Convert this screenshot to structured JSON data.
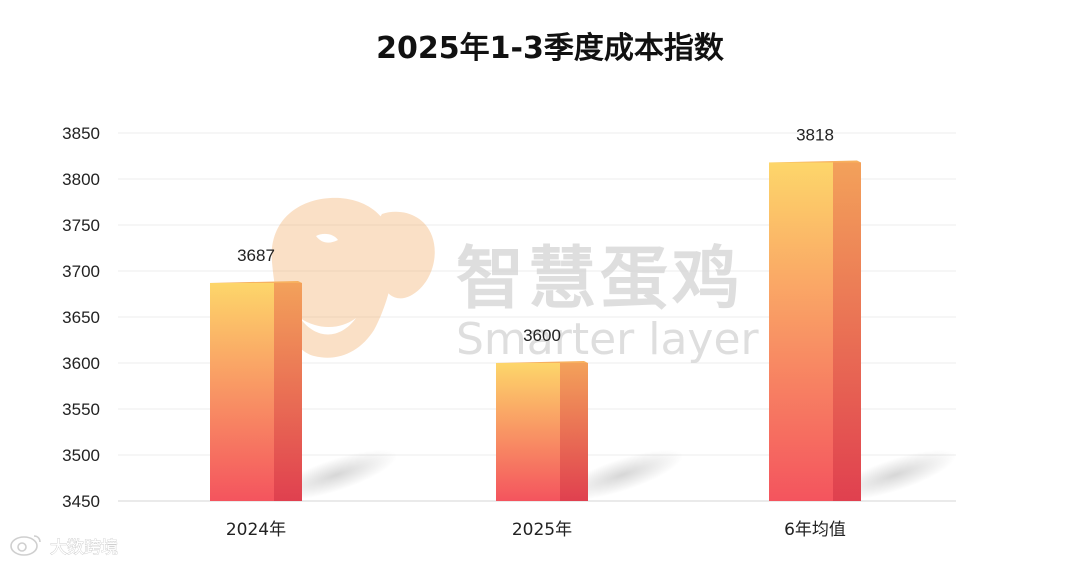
{
  "chart_data": {
    "type": "bar",
    "title": "2025年1-3季度成本指数",
    "categories": [
      "2024年",
      "2025年",
      "6年均值"
    ],
    "values": [
      3687,
      3600,
      3818
    ],
    "data_labels": [
      "3687",
      "3600",
      "3818"
    ],
    "ylim": [
      3450,
      3850
    ],
    "yticks": [
      3450,
      3500,
      3550,
      3600,
      3650,
      3700,
      3750,
      3800,
      3850
    ],
    "grid": true,
    "legend": "none",
    "bar_gradient": [
      "#fdd66a",
      "#f4545e"
    ]
  },
  "watermark": {
    "cn": "智慧蛋鸡",
    "en": "Smarter layer"
  },
  "source_mark": {
    "text": "大数跨境"
  }
}
